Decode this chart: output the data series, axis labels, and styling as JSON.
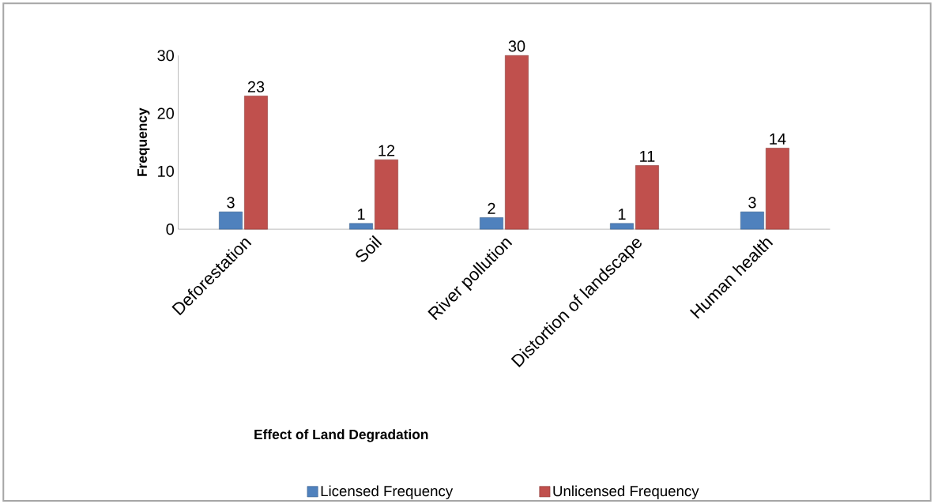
{
  "chart_data": {
    "type": "bar",
    "xlabel": "Effect of Land Degradation",
    "ylabel": "Frequency",
    "categories": [
      "Deforestation",
      "Soil",
      "River pollution",
      "Distortion of landscape",
      "Human health"
    ],
    "series": [
      {
        "name": "Licensed Frequency",
        "color": "#4f81bd",
        "values": [
          3,
          1,
          2,
          1,
          3
        ]
      },
      {
        "name": "Unlicensed Frequency",
        "color": "#c0504d",
        "values": [
          23,
          12,
          30,
          11,
          14
        ]
      }
    ],
    "ylim": [
      0,
      30
    ],
    "yticks": [
      0,
      10,
      20,
      30
    ],
    "data_labels": true,
    "legend": "bottom"
  }
}
